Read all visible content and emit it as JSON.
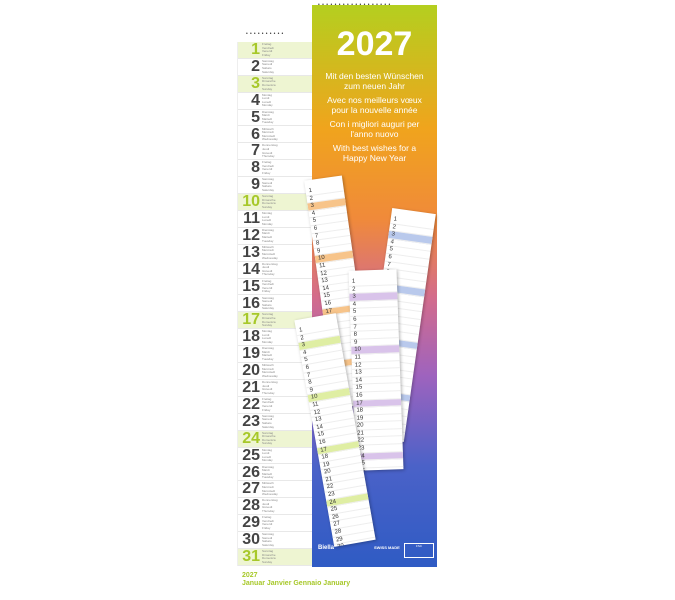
{
  "strip": {
    "days": [
      {
        "n": "1",
        "names": [
          "Freitag",
          "Vendredi",
          "Venerdì",
          "Friday"
        ],
        "hl": true
      },
      {
        "n": "2",
        "names": [
          "Samstag",
          "Samedi",
          "Sabato",
          "Saturday"
        ]
      },
      {
        "n": "3",
        "names": [
          "Sonntag",
          "Dimanche",
          "Domenica",
          "Sunday"
        ],
        "hl": true
      },
      {
        "n": "4",
        "names": [
          "Montag",
          "Lundi",
          "Lunedì",
          "Monday"
        ]
      },
      {
        "n": "5",
        "names": [
          "Dienstag",
          "Mardi",
          "Martedì",
          "Tuesday"
        ]
      },
      {
        "n": "6",
        "names": [
          "Mittwoch",
          "Mercredi",
          "Mercoledì",
          "Wednesday"
        ]
      },
      {
        "n": "7",
        "names": [
          "Donnerstag",
          "Jeudi",
          "Giovedì",
          "Thursday"
        ]
      },
      {
        "n": "8",
        "names": [
          "Freitag",
          "Vendredi",
          "Venerdì",
          "Friday"
        ]
      },
      {
        "n": "9",
        "names": [
          "Samstag",
          "Samedi",
          "Sabato",
          "Saturday"
        ]
      },
      {
        "n": "10",
        "names": [
          "Sonntag",
          "Dimanche",
          "Domenica",
          "Sunday"
        ],
        "hl": true
      },
      {
        "n": "11",
        "names": [
          "Montag",
          "Lundi",
          "Lunedì",
          "Monday"
        ]
      },
      {
        "n": "12",
        "names": [
          "Dienstag",
          "Mardi",
          "Martedì",
          "Tuesday"
        ]
      },
      {
        "n": "13",
        "names": [
          "Mittwoch",
          "Mercredi",
          "Mercoledì",
          "Wednesday"
        ]
      },
      {
        "n": "14",
        "names": [
          "Donnerstag",
          "Jeudi",
          "Giovedì",
          "Thursday"
        ]
      },
      {
        "n": "15",
        "names": [
          "Freitag",
          "Vendredi",
          "Venerdì",
          "Friday"
        ]
      },
      {
        "n": "16",
        "names": [
          "Samstag",
          "Samedi",
          "Sabato",
          "Saturday"
        ]
      },
      {
        "n": "17",
        "names": [
          "Sonntag",
          "Dimanche",
          "Domenica",
          "Sunday"
        ],
        "hl": true
      },
      {
        "n": "18",
        "names": [
          "Montag",
          "Lundi",
          "Lunedì",
          "Monday"
        ]
      },
      {
        "n": "19",
        "names": [
          "Dienstag",
          "Mardi",
          "Martedì",
          "Tuesday"
        ]
      },
      {
        "n": "20",
        "names": [
          "Mittwoch",
          "Mercredi",
          "Mercoledì",
          "Wednesday"
        ]
      },
      {
        "n": "21",
        "names": [
          "Donnerstag",
          "Jeudi",
          "Giovedì",
          "Thursday"
        ]
      },
      {
        "n": "22",
        "names": [
          "Freitag",
          "Vendredi",
          "Venerdì",
          "Friday"
        ]
      },
      {
        "n": "23",
        "names": [
          "Samstag",
          "Samedi",
          "Sabato",
          "Saturday"
        ]
      },
      {
        "n": "24",
        "names": [
          "Sonntag",
          "Dimanche",
          "Domenica",
          "Sunday"
        ],
        "hl": true
      },
      {
        "n": "25",
        "names": [
          "Montag",
          "Lundi",
          "Lunedì",
          "Monday"
        ]
      },
      {
        "n": "26",
        "names": [
          "Dienstag",
          "Mardi",
          "Martedì",
          "Tuesday"
        ]
      },
      {
        "n": "27",
        "names": [
          "Mittwoch",
          "Mercredi",
          "Mercoledì",
          "Wednesday"
        ]
      },
      {
        "n": "28",
        "names": [
          "Donnerstag",
          "Jeudi",
          "Giovedì",
          "Thursday"
        ]
      },
      {
        "n": "29",
        "names": [
          "Freitag",
          "Vendredi",
          "Venerdì",
          "Friday"
        ]
      },
      {
        "n": "30",
        "names": [
          "Samstag",
          "Samedi",
          "Sabato",
          "Saturday"
        ]
      },
      {
        "n": "31",
        "names": [
          "Sonntag",
          "Dimanche",
          "Domenica",
          "Sunday"
        ],
        "hl": true
      }
    ]
  },
  "cover": {
    "year": "2027",
    "greetings": [
      [
        "Mit den besten Wünschen",
        "zum neuen Jahr"
      ],
      [
        "Avec nos meilleurs vœux",
        "pour la nouvelle année"
      ],
      [
        "Con i migliori auguri per",
        "l'anno nuovo"
      ],
      [
        "With best wishes for a",
        "Happy New Year"
      ]
    ],
    "brand": "Biella",
    "swiss_made": "SWISS MADE",
    "fsc": "FSC"
  },
  "footer": {
    "year": "2027",
    "months": "Januar Janvier Gennaio January"
  },
  "colors": {
    "accent": "#a7c82a"
  }
}
